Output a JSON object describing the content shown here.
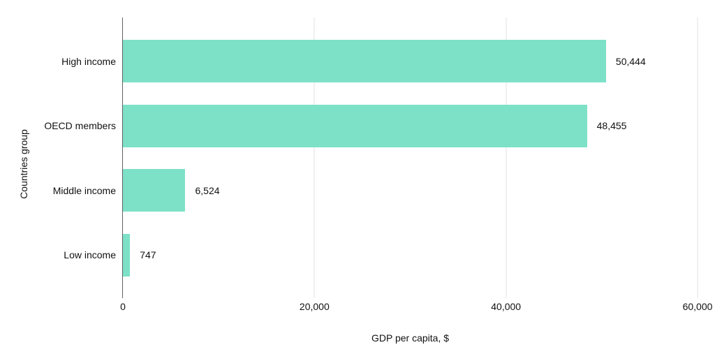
{
  "chart_data": {
    "type": "bar",
    "orientation": "horizontal",
    "title": "",
    "categories": [
      "High income",
      "OECD members",
      "Middle income",
      "Low income"
    ],
    "values": [
      50444,
      48455,
      6524,
      747
    ],
    "value_labels": [
      "50,444",
      "48,455",
      "6,524",
      "747"
    ],
    "xlabel": "GDP per capita, $",
    "ylabel": "Countries group",
    "xlim": [
      0,
      60000
    ],
    "x_ticks": [
      0,
      20000,
      40000,
      60000
    ],
    "x_tick_labels": [
      "0",
      "20,000",
      "40,000",
      "60,000"
    ],
    "grid": "vertical-gridlines-on",
    "legend": "none",
    "bar_color": "#7de1c7"
  },
  "colors": {
    "bar": "#7de1c7",
    "gridline": "#e0e0e0",
    "axis_line": "#616161",
    "text": "#111111",
    "background": "#ffffff"
  }
}
